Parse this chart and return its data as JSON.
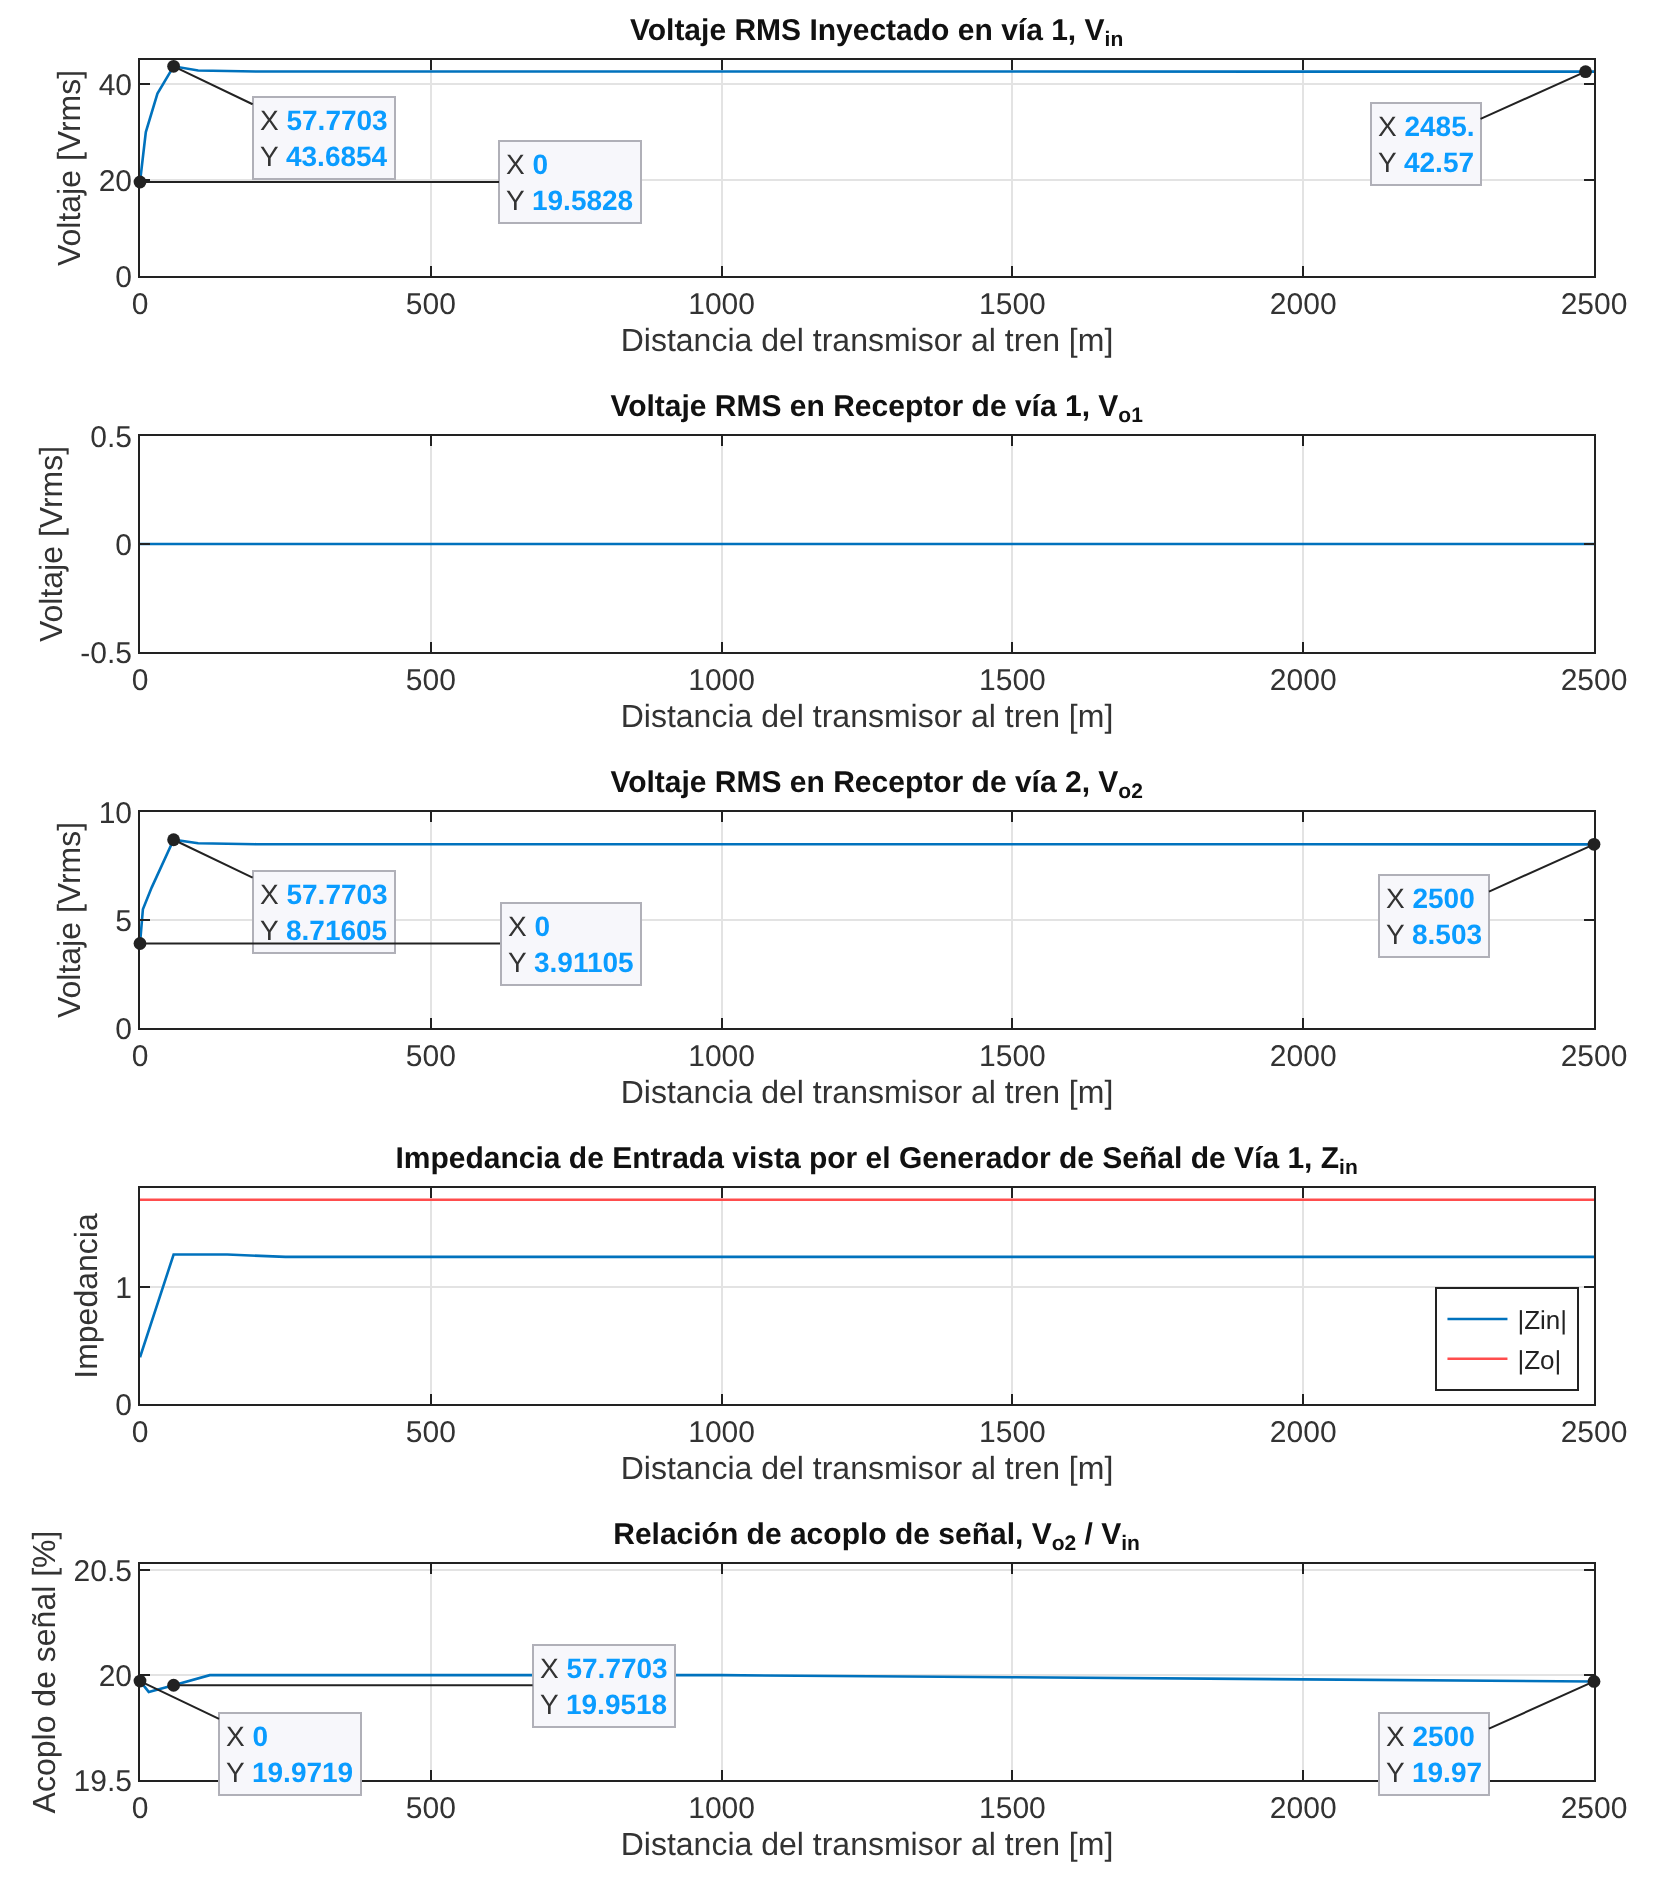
{
  "chart_data": [
    {
      "type": "line",
      "title": "Voltaje RMS Inyectado en vía 1, V$_{in}$",
      "xlabel": "Distancia del transmisor al tren [m]",
      "ylabel": "Voltaje [Vrms]",
      "x": [
        0,
        10,
        30,
        57.7703,
        100,
        200,
        500,
        1000,
        2000,
        2485.5,
        2500
      ],
      "series": [
        {
          "color": "#0072bd",
          "values": [
            19.5828,
            30,
            38,
            43.6854,
            42.8,
            42.6,
            42.6,
            42.6,
            42.58,
            42.57,
            42.57
          ]
        }
      ],
      "xlim": [
        0,
        2500
      ],
      "xticks": [
        0,
        500,
        1000,
        1500,
        2000,
        2500
      ],
      "ylim": [
        0,
        45
      ],
      "yticks": [
        0,
        20,
        40
      ],
      "grid": true,
      "annotations": [
        {
          "text": "X 57.7703\nY 43.6854",
          "x": 57.7703,
          "y": 43.6854
        },
        {
          "text": "X 0\nY 19.5828",
          "x": 0,
          "y": 19.5828
        },
        {
          "text": "X 2485.\nY 42.57",
          "x": 2485.5,
          "y": 42.57
        }
      ]
    },
    {
      "type": "line",
      "title": "Voltaje RMS en Receptor de vía 1, V$_{o1}$",
      "xlabel": "Distancia del transmisor al tren [m]",
      "ylabel": "Voltaje [Vrms]",
      "x": [
        0,
        2500
      ],
      "series": [
        {
          "color": "#0072bd",
          "values": [
            0,
            0
          ]
        }
      ],
      "xlim": [
        0,
        2500
      ],
      "xticks": [
        0,
        500,
        1000,
        1500,
        2000,
        2500
      ],
      "ylim": [
        -0.5,
        0.5
      ],
      "yticks": [
        -0.5,
        0,
        0.5
      ],
      "grid": true
    },
    {
      "type": "line",
      "title": "Voltaje RMS en Receptor de vía 2, V$_{o2}$",
      "xlabel": "Distancia del transmisor al tren [m]",
      "ylabel": "Voltaje [Vrms]",
      "x": [
        0,
        5,
        20,
        57.7703,
        100,
        200,
        500,
        1000,
        2000,
        2500
      ],
      "series": [
        {
          "color": "#0072bd",
          "values": [
            3.91105,
            5.5,
            6.5,
            8.71605,
            8.55,
            8.51,
            8.51,
            8.51,
            8.505,
            8.503
          ]
        }
      ],
      "xlim": [
        0,
        2500
      ],
      "xticks": [
        0,
        500,
        1000,
        1500,
        2000,
        2500
      ],
      "ylim": [
        0,
        10
      ],
      "yticks": [
        0,
        5,
        10
      ],
      "grid": true,
      "annotations": [
        {
          "text": "X 57.7703\nY 8.71605",
          "x": 57.7703,
          "y": 8.71605
        },
        {
          "text": "X 0\nY 3.91105",
          "x": 0,
          "y": 3.91105
        },
        {
          "text": "X 2500\nY 8.503",
          "x": 2500,
          "y": 8.503
        }
      ]
    },
    {
      "type": "line",
      "title": "Impedancia de Entrada vista por el Generador de Señal de Vía 1, Z$_{in}$",
      "xlabel": "Distancia del transmisor al tren [m]",
      "ylabel": "Impedancia",
      "x": [
        0,
        57.7703,
        150,
        250,
        500,
        1000,
        2000,
        2500
      ],
      "series": [
        {
          "name": "|Zin|",
          "color": "#0072bd",
          "values": [
            0.4,
            1.28,
            1.28,
            1.26,
            1.26,
            1.26,
            1.26,
            1.26
          ]
        },
        {
          "name": "|Zo|",
          "color": "#ff4d4d",
          "values": [
            1.75,
            1.75,
            1.75,
            1.75,
            1.75,
            1.75,
            1.75,
            1.75
          ]
        }
      ],
      "xlim": [
        0,
        2500
      ],
      "xticks": [
        0,
        500,
        1000,
        1500,
        2000,
        2500
      ],
      "ylim": [
        0,
        1.85
      ],
      "yticks": [
        0,
        1
      ],
      "grid": true,
      "legend": "bottom right"
    },
    {
      "type": "line",
      "title": "Relación de acoplo de señal, V$_{o2}$ / V$_{in}$",
      "xlabel": "Distancia del transmisor al tren [m]",
      "ylabel": "Acoplo de señal [%]",
      "x": [
        0,
        15,
        57.7703,
        120,
        500,
        1000,
        1500,
        2000,
        2500
      ],
      "series": [
        {
          "color": "#0072bd",
          "values": [
            19.9719,
            19.92,
            19.9518,
            20.0,
            20.0,
            20.0,
            19.99,
            19.98,
            19.97
          ]
        }
      ],
      "xlim": [
        0,
        2500
      ],
      "xticks": [
        0,
        500,
        1000,
        1500,
        2000,
        2500
      ],
      "ylim": [
        19.5,
        20.53
      ],
      "yticks": [
        19.5,
        20,
        20.5
      ],
      "grid": true,
      "annotations": [
        {
          "text": "X 0\nY 19.9719",
          "x": 0,
          "y": 19.9719
        },
        {
          "text": "X 57.7703\nY 19.9518",
          "x": 57.7703,
          "y": 19.9518
        },
        {
          "text": "X 2500\nY 19.97",
          "x": 2500,
          "y": 19.97
        }
      ]
    }
  ]
}
